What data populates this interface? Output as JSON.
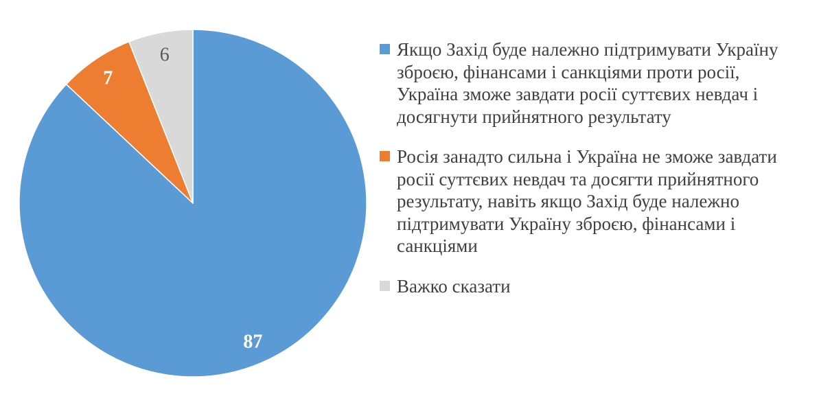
{
  "chart_data": {
    "type": "pie",
    "start": "12 o'clock",
    "direction": "clockwise",
    "legend_position": "right",
    "slices": [
      {
        "label": "Якщо Захід буде належно підтримувати Україну зброєю, фінансами і санкціями проти росії, Україна зможе завдати росії суттєвих невдач і досягнути прийнятного результату",
        "value": 87,
        "color": "#5b9bd5",
        "label_color": "#ffffff",
        "label_bold": true
      },
      {
        "label": "Росія занадто сильна і Україна не зможе завдати росії суттєвих невдач та досягти прийнятного результату, навіть якщо Захід буде належно підтримувати Україну зброєю, фінансами і санкціями",
        "value": 7,
        "color": "#ed7d31",
        "label_color": "#ffffff",
        "label_bold": true
      },
      {
        "label": "Важко сказати",
        "value": 6,
        "color": "#d9d9d9",
        "label_color": "#595959",
        "label_bold": false
      }
    ]
  }
}
